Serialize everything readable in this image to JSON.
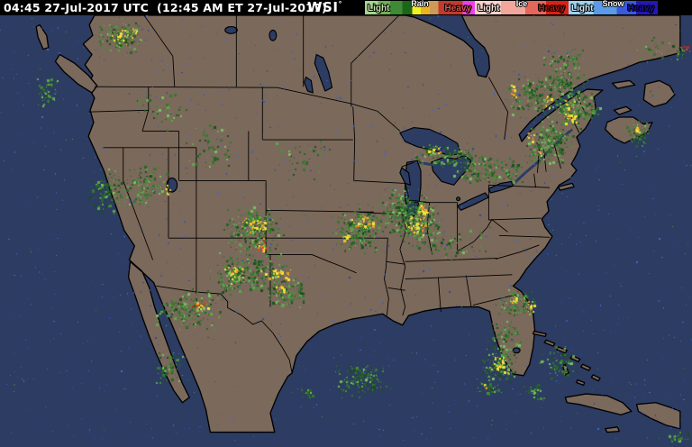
{
  "header": {
    "timestamp": "04:45 27-Jul-2017 UTC  (12:45 AM ET 27-Jul-2017)",
    "logo_text": "WSI",
    "logo_mark": "°",
    "bg": "#000000",
    "fg": "#ffffff"
  },
  "legend": {
    "sections": [
      {
        "id": "rain",
        "label": "Rain",
        "left_label": "Light",
        "right_label": "Heavy",
        "width": 122,
        "stops": [
          [
            "#a9d490",
            0,
            12
          ],
          [
            "#6fae54",
            12,
            23
          ],
          [
            "#3f8a36",
            23,
            34
          ],
          [
            "#1c661a",
            34,
            43
          ],
          [
            "#f2ef25",
            43,
            51
          ],
          [
            "#e9b324",
            51,
            59
          ],
          [
            "#cf9a57",
            59,
            67
          ],
          [
            "#c23a2e",
            67,
            89
          ],
          [
            "#ee3fee",
            89,
            100
          ]
        ],
        "light_color": "#c4e2ae",
        "heavy_color": "#e2524a"
      },
      {
        "id": "ice",
        "label": "Ice",
        "left_label": "Light",
        "right_label": "Heavy",
        "width": 104,
        "stops": [
          [
            "#f7d3cb",
            0,
            28
          ],
          [
            "#f2a79c",
            28,
            54
          ],
          [
            "#e4675a",
            54,
            76
          ],
          [
            "#de1f14",
            76,
            100
          ]
        ],
        "light_color": "#fce4de",
        "heavy_color": "#b01a10"
      },
      {
        "id": "snow",
        "label": "Snow",
        "left_label": "Light",
        "right_label": "Heavy",
        "width": 99,
        "stops": [
          [
            "#9cd2f2",
            0,
            28
          ],
          [
            "#5a9ae6",
            28,
            54
          ],
          [
            "#3a5ada",
            54,
            76
          ],
          [
            "#2317b4",
            76,
            100
          ]
        ],
        "light_color": "#c8e8fa",
        "heavy_color": "#1a10a0"
      }
    ]
  },
  "map": {
    "colors": {
      "ocean": "#2c3c62",
      "land": "#7b695b",
      "border": "#000000",
      "lake": "#2c3c62"
    },
    "radar": {
      "palettes": {
        "g": [
          "#1d4d1d",
          "#276327",
          "#276327",
          "#327a2c",
          "#327a2c",
          "#478f3a",
          "#61a74e",
          "#7dbd63"
        ],
        "h": [
          "#f2e636",
          "#f2e636",
          "#efc22c",
          "#ea9b24",
          "#f0dd4a"
        ],
        "hr": [
          "#ea9b24",
          "#d8491f",
          "#c22d18",
          "#f2e636",
          "#efc22c"
        ]
      },
      "echoes": [
        [
          40,
          82,
          26,
          38,
          55,
          "g"
        ],
        [
          104,
          22,
          58,
          40,
          150,
          "g"
        ],
        [
          118,
          28,
          32,
          24,
          28,
          "h"
        ],
        [
          146,
          30,
          8,
          8,
          6,
          "hr"
        ],
        [
          150,
          95,
          60,
          50,
          55,
          "g"
        ],
        [
          95,
          185,
          52,
          55,
          140,
          "g"
        ],
        [
          140,
          180,
          48,
          52,
          120,
          "g"
        ],
        [
          182,
          204,
          10,
          14,
          10,
          "h"
        ],
        [
          200,
          130,
          70,
          70,
          60,
          "g"
        ],
        [
          300,
          150,
          70,
          55,
          40,
          "g"
        ],
        [
          245,
          228,
          72,
          52,
          280,
          "g"
        ],
        [
          262,
          238,
          40,
          22,
          42,
          "h"
        ],
        [
          283,
          264,
          15,
          17,
          20,
          "hr"
        ],
        [
          240,
          278,
          82,
          46,
          250,
          "g"
        ],
        [
          252,
          292,
          24,
          26,
          26,
          "h"
        ],
        [
          288,
          296,
          38,
          14,
          32,
          "h"
        ],
        [
          295,
          308,
          46,
          34,
          130,
          "g"
        ],
        [
          302,
          316,
          24,
          12,
          15,
          "h"
        ],
        [
          228,
          286,
          55,
          44,
          95,
          "g"
        ],
        [
          248,
          294,
          18,
          12,
          12,
          "h"
        ],
        [
          172,
          318,
          76,
          50,
          210,
          "g"
        ],
        [
          210,
          332,
          24,
          13,
          22,
          "hr"
        ],
        [
          170,
          388,
          36,
          38,
          70,
          "g"
        ],
        [
          368,
          226,
          62,
          57,
          240,
          "g"
        ],
        [
          388,
          238,
          28,
          16,
          32,
          "h"
        ],
        [
          378,
          257,
          16,
          12,
          12,
          "h"
        ],
        [
          430,
          220,
          62,
          57,
          270,
          "g"
        ],
        [
          450,
          238,
          28,
          24,
          36,
          "h"
        ],
        [
          462,
          230,
          14,
          10,
          12,
          "h"
        ],
        [
          418,
          208,
          56,
          46,
          210,
          "g"
        ],
        [
          463,
          216,
          12,
          34,
          28,
          "h"
        ],
        [
          455,
          158,
          76,
          28,
          130,
          "g"
        ],
        [
          468,
          162,
          26,
          9,
          15,
          "h"
        ],
        [
          498,
          170,
          56,
          36,
          130,
          "g"
        ],
        [
          540,
          174,
          46,
          32,
          80,
          "g"
        ],
        [
          470,
          248,
          72,
          46,
          60,
          "g"
        ],
        [
          560,
          80,
          56,
          56,
          150,
          "g"
        ],
        [
          564,
          93,
          10,
          18,
          10,
          "h"
        ],
        [
          592,
          60,
          62,
          72,
          230,
          "g"
        ],
        [
          600,
          106,
          14,
          20,
          12,
          "h"
        ],
        [
          618,
          98,
          42,
          47,
          140,
          "g"
        ],
        [
          624,
          110,
          17,
          27,
          32,
          "h"
        ],
        [
          582,
          130,
          56,
          57,
          240,
          "g"
        ],
        [
          585,
          146,
          10,
          12,
          10,
          "h"
        ],
        [
          595,
          166,
          8,
          8,
          6,
          "h"
        ],
        [
          608,
          52,
          52,
          26,
          50,
          "g"
        ],
        [
          746,
          52,
          18,
          14,
          14,
          "g"
        ],
        [
          755,
          48,
          10,
          12,
          9,
          "hr"
        ],
        [
          694,
          132,
          28,
          32,
          75,
          "g"
        ],
        [
          701,
          138,
          11,
          11,
          9,
          "h"
        ],
        [
          648,
          116,
          22,
          16,
          18,
          "g"
        ],
        [
          550,
          320,
          46,
          33,
          120,
          "g"
        ],
        [
          565,
          327,
          12,
          12,
          14,
          "h"
        ],
        [
          583,
          334,
          11,
          13,
          11,
          "h"
        ],
        [
          540,
          350,
          40,
          46,
          80,
          "g"
        ],
        [
          532,
          384,
          44,
          42,
          160,
          "g"
        ],
        [
          544,
          394,
          20,
          23,
          28,
          "h"
        ],
        [
          528,
          422,
          32,
          17,
          42,
          "g"
        ],
        [
          534,
          425,
          8,
          7,
          5,
          "h"
        ],
        [
          368,
          402,
          62,
          40,
          160,
          "g"
        ],
        [
          596,
          380,
          46,
          46,
          80,
          "g"
        ],
        [
          580,
          426,
          32,
          18,
          35,
          "g"
        ],
        [
          330,
          428,
          20,
          14,
          18,
          "g"
        ],
        [
          740,
          478,
          28,
          16,
          24,
          "g"
        ],
        [
          706,
          38,
          44,
          30,
          28,
          "g"
        ]
      ],
      "noise": {
        "blue_count": 820,
        "blue_colors": [
          "#3a58b2",
          "#2d47a0",
          "#4a68c4"
        ],
        "green_count": 240,
        "green_colors": [
          "#3f7f33",
          "#58984a"
        ]
      }
    }
  }
}
